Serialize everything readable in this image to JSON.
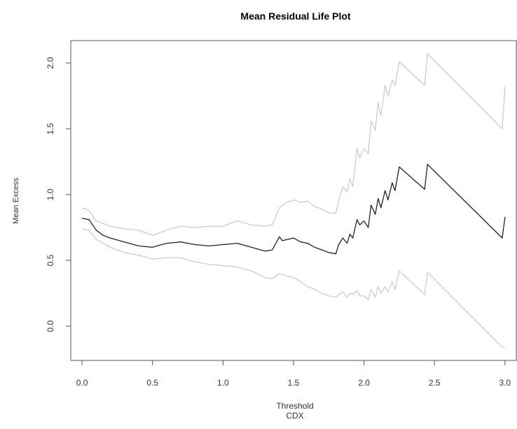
{
  "chart_data": {
    "type": "line",
    "title": "Mean Residual Life Plot",
    "xlabel": "Threshold",
    "xlabel_sub": "CDX",
    "ylabel": "Mean Excess",
    "xlim": [
      -0.08,
      3.08
    ],
    "ylim": [
      -0.26,
      2.17
    ],
    "xticks": [
      0.0,
      0.5,
      1.0,
      1.5,
      2.0,
      2.5,
      3.0
    ],
    "xtick_labels": [
      "0.0",
      "0.5",
      "1.0",
      "1.5",
      "2.0",
      "2.5",
      "3.0"
    ],
    "yticks": [
      0.0,
      0.5,
      1.0,
      1.5,
      2.0
    ],
    "ytick_labels": [
      "0.0",
      "0.5",
      "1.0",
      "1.5",
      "2.0"
    ],
    "grid": false,
    "series": [
      {
        "role": "mean",
        "color": "#222222",
        "x": [
          0.0,
          0.05,
          0.1,
          0.15,
          0.2,
          0.3,
          0.4,
          0.5,
          0.6,
          0.7,
          0.8,
          0.9,
          1.0,
          1.1,
          1.2,
          1.3,
          1.35,
          1.4,
          1.42,
          1.5,
          1.55,
          1.6,
          1.65,
          1.7,
          1.75,
          1.8,
          1.82,
          1.85,
          1.88,
          1.9,
          1.92,
          1.95,
          1.97,
          2.0,
          2.03,
          2.05,
          2.08,
          2.1,
          2.12,
          2.15,
          2.17,
          2.2,
          2.22,
          2.25,
          2.43,
          2.45,
          2.98,
          3.0
        ],
        "y": [
          0.82,
          0.81,
          0.73,
          0.69,
          0.67,
          0.64,
          0.61,
          0.6,
          0.63,
          0.64,
          0.62,
          0.61,
          0.62,
          0.63,
          0.6,
          0.57,
          0.58,
          0.68,
          0.65,
          0.67,
          0.64,
          0.63,
          0.6,
          0.58,
          0.56,
          0.55,
          0.62,
          0.67,
          0.63,
          0.7,
          0.67,
          0.81,
          0.77,
          0.8,
          0.75,
          0.92,
          0.85,
          0.97,
          0.9,
          1.03,
          0.96,
          1.09,
          1.03,
          1.21,
          1.04,
          1.23,
          0.67,
          0.83
        ]
      },
      {
        "role": "upper-bound",
        "color": "#c8c8c8",
        "x": [
          0.0,
          0.05,
          0.1,
          0.2,
          0.3,
          0.4,
          0.5,
          0.6,
          0.7,
          0.8,
          0.9,
          1.0,
          1.1,
          1.2,
          1.3,
          1.35,
          1.4,
          1.45,
          1.5,
          1.55,
          1.6,
          1.65,
          1.7,
          1.75,
          1.8,
          1.82,
          1.85,
          1.88,
          1.9,
          1.92,
          1.95,
          1.97,
          2.0,
          2.03,
          2.05,
          2.08,
          2.1,
          2.12,
          2.15,
          2.17,
          2.2,
          2.22,
          2.25,
          2.43,
          2.45,
          2.98,
          3.0
        ],
        "y": [
          0.9,
          0.88,
          0.8,
          0.76,
          0.74,
          0.73,
          0.69,
          0.73,
          0.76,
          0.75,
          0.76,
          0.76,
          0.8,
          0.77,
          0.76,
          0.77,
          0.9,
          0.94,
          0.96,
          0.94,
          0.95,
          0.91,
          0.89,
          0.86,
          0.86,
          0.95,
          1.06,
          1.02,
          1.12,
          1.06,
          1.35,
          1.28,
          1.35,
          1.31,
          1.56,
          1.49,
          1.7,
          1.6,
          1.83,
          1.75,
          1.87,
          1.83,
          2.01,
          1.83,
          2.07,
          1.5,
          1.82
        ]
      },
      {
        "role": "lower-bound",
        "color": "#c8c8c8",
        "x": [
          0.0,
          0.05,
          0.1,
          0.2,
          0.3,
          0.4,
          0.5,
          0.6,
          0.7,
          0.8,
          0.9,
          1.0,
          1.1,
          1.2,
          1.3,
          1.35,
          1.4,
          1.45,
          1.5,
          1.55,
          1.6,
          1.65,
          1.7,
          1.75,
          1.8,
          1.82,
          1.85,
          1.88,
          1.9,
          1.92,
          1.95,
          1.97,
          2.0,
          2.03,
          2.05,
          2.08,
          2.1,
          2.12,
          2.15,
          2.17,
          2.2,
          2.22,
          2.25,
          2.43,
          2.45,
          2.98,
          3.0
        ],
        "y": [
          0.74,
          0.73,
          0.66,
          0.6,
          0.56,
          0.54,
          0.51,
          0.52,
          0.52,
          0.49,
          0.47,
          0.46,
          0.45,
          0.42,
          0.37,
          0.36,
          0.4,
          0.38,
          0.37,
          0.34,
          0.3,
          0.28,
          0.25,
          0.23,
          0.22,
          0.24,
          0.26,
          0.22,
          0.25,
          0.24,
          0.27,
          0.23,
          0.23,
          0.2,
          0.28,
          0.22,
          0.3,
          0.25,
          0.3,
          0.26,
          0.34,
          0.28,
          0.42,
          0.24,
          0.41,
          -0.16,
          -0.16
        ]
      }
    ]
  }
}
